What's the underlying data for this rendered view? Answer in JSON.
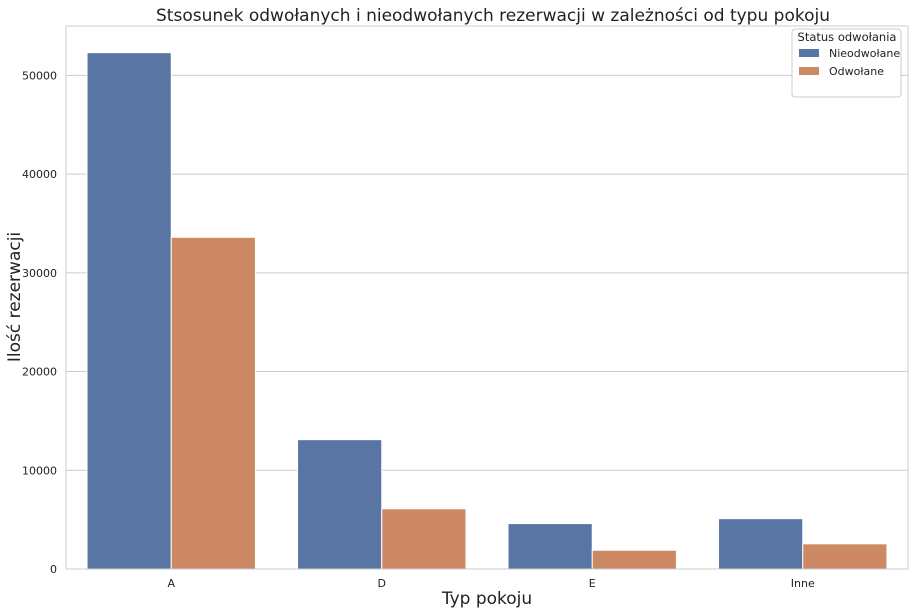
{
  "chart_data": {
    "type": "bar",
    "title": "Stsosunek odwołanych i nieodwołanych rezerwacji w zależności od typu pokoju",
    "xlabel": "Typ pokoju",
    "ylabel": "Ilość rezerwacji",
    "categories": [
      "A",
      "D",
      "E",
      "Inne"
    ],
    "series": [
      {
        "name": "Nieodwołane",
        "color": "#5975a4",
        "values": [
          52300,
          13100,
          4600,
          5100
        ]
      },
      {
        "name": "Odwołane",
        "color": "#cc8963",
        "values": [
          33600,
          6100,
          1900,
          2550
        ]
      }
    ],
    "ylim": [
      0,
      55000
    ],
    "yticks": [
      0,
      10000,
      20000,
      30000,
      40000,
      50000
    ],
    "grid": true,
    "legend": {
      "title": "Status odwołania",
      "position": "top-right"
    }
  }
}
